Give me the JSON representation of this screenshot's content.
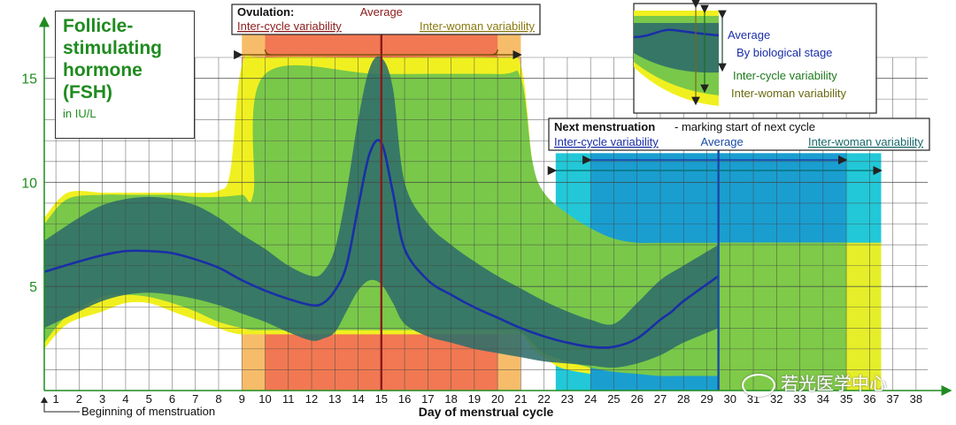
{
  "chart_data": {
    "type": "area",
    "title": "Follicle-stimulating hormone (FSH)",
    "unit": "in IU/L",
    "xlabel": "Day of menstrual cycle",
    "x_start_label": "Beginning of menstruation",
    "xlim": [
      0.5,
      38.5
    ],
    "ylim": [
      0,
      16
    ],
    "yticks": [
      5,
      10,
      15
    ],
    "xticks": [
      1,
      2,
      3,
      4,
      5,
      6,
      7,
      8,
      9,
      10,
      11,
      12,
      13,
      14,
      15,
      16,
      17,
      18,
      19,
      20,
      21,
      22,
      23,
      24,
      25,
      26,
      27,
      28,
      29,
      30,
      31,
      32,
      33,
      34,
      35,
      36,
      37,
      38
    ],
    "grid": true,
    "colors": {
      "average": "#1a2ea8",
      "biological_stage": "#2e6d6a",
      "inter_cycle": "#79c84a",
      "inter_woman": "#f0f020",
      "ovulation_inter_woman": "#f6b55a",
      "ovulation_inter_cycle": "#f07050",
      "menstruation_inter_woman": "#22c8d8",
      "menstruation_inter_cycle": "#1a9ed0",
      "ovulation_line": "#8b1a1a",
      "menstruation_line": "#1a4aa8"
    },
    "series": [
      {
        "name": "Average",
        "x": [
          0.5,
          2,
          3,
          4,
          5,
          6,
          7,
          8,
          9,
          10,
          11,
          12,
          12.5,
          13,
          13.5,
          14,
          14.5,
          15,
          15.5,
          16,
          17,
          18,
          19,
          20,
          21,
          22,
          23,
          24,
          25,
          26,
          27,
          27.5,
          28,
          29.5
        ],
        "y": [
          5.7,
          6.2,
          6.5,
          6.7,
          6.7,
          6.6,
          6.3,
          5.9,
          5.3,
          4.8,
          4.4,
          4.1,
          4.2,
          4.8,
          6.0,
          8.8,
          11.4,
          11.9,
          9.5,
          6.8,
          5.3,
          4.6,
          4.0,
          3.5,
          3.0,
          2.6,
          2.3,
          2.1,
          2.1,
          2.5,
          3.4,
          3.8,
          4.3,
          5.5
        ]
      },
      {
        "name": "By biological stage",
        "x": [
          0.5,
          2,
          3,
          4,
          5,
          6,
          7,
          8,
          9,
          10,
          11,
          12,
          12.5,
          13,
          13.5,
          14,
          14.5,
          15,
          15.5,
          16,
          17,
          18,
          19,
          20,
          21,
          22,
          23,
          24,
          25,
          26,
          27,
          28,
          29.5
        ],
        "upper": [
          7.2,
          8.3,
          8.9,
          9.2,
          9.3,
          9.2,
          8.9,
          8.3,
          7.5,
          6.8,
          6.0,
          5.5,
          5.7,
          6.8,
          9.5,
          13.0,
          15.5,
          16.0,
          14.5,
          10.0,
          8.0,
          7.0,
          6.2,
          5.5,
          4.9,
          4.3,
          3.8,
          3.4,
          3.2,
          4.2,
          5.3,
          6.0,
          7.0
        ],
        "lower": [
          3.0,
          3.8,
          4.3,
          4.6,
          4.7,
          4.6,
          4.4,
          4.1,
          3.7,
          3.3,
          2.8,
          2.4,
          2.5,
          2.8,
          3.8,
          4.8,
          5.3,
          5.1,
          4.2,
          3.2,
          2.6,
          2.3,
          2.0,
          1.8,
          1.6,
          1.4,
          1.3,
          1.2,
          1.1,
          1.3,
          1.7,
          2.3,
          3.0
        ]
      },
      {
        "name": "Inter-cycle variability",
        "x": [
          0.5,
          1.5,
          3,
          4,
          5,
          6,
          7,
          8,
          9,
          9.5,
          10,
          15,
          20,
          21,
          21.5,
          22,
          23,
          24,
          25,
          26,
          27,
          28,
          29.5
        ],
        "upper": [
          8.0,
          9.2,
          9.4,
          9.4,
          9.4,
          9.4,
          9.3,
          9.3,
          9.4,
          9.5,
          15.2,
          15.2,
          15.2,
          15.0,
          11.0,
          9.5,
          8.5,
          7.8,
          7.3,
          7.1,
          7.1,
          7.1,
          7.1
        ],
        "lower": [
          2.3,
          3.6,
          4.5,
          4.6,
          4.5,
          4.2,
          3.8,
          3.3,
          3.0,
          2.9,
          2.9,
          2.9,
          2.9,
          2.8,
          2.3,
          1.8,
          1.4,
          1.1,
          0.9,
          0.8,
          0.7,
          0.7,
          0.7
        ]
      },
      {
        "name": "Inter-woman variability",
        "x": [
          0.5,
          1.5,
          3,
          4,
          5,
          6,
          7,
          8,
          8.5,
          9,
          10,
          15,
          20,
          21,
          21.5,
          22,
          22.5,
          23,
          24
        ],
        "upper": [
          8.3,
          9.5,
          9.5,
          9.5,
          9.5,
          9.5,
          9.5,
          9.6,
          10.5,
          15.6,
          16.0,
          16.0,
          16.0,
          15.6,
          11.0,
          9.3,
          8.5,
          7.5,
          7.0
        ],
        "lower": [
          2.0,
          3.2,
          3.8,
          4.2,
          4.2,
          3.8,
          3.4,
          3.0,
          2.8,
          2.7,
          2.7,
          2.7,
          2.7,
          2.7,
          2.0,
          1.6,
          1.2,
          1.0,
          0.8
        ]
      }
    ],
    "ovulation": {
      "label": "Ovulation:",
      "average_label": "Average",
      "inter_cycle_label": "Inter-cycle variability",
      "inter_woman_label": "Inter-woman variability",
      "average_day": 15,
      "inter_cycle_range": [
        10,
        20
      ],
      "inter_woman_range": [
        9,
        21
      ]
    },
    "next_menstruation": {
      "label_bold": "Next menstruation",
      "label_rest": " - marking start of next cycle",
      "inter_cycle_label": "Inter-cycle variability",
      "average_label": "Average",
      "inter_woman_label": "Inter-woman variability",
      "average_day": 29.5,
      "inter_cycle_range": [
        24,
        35
      ],
      "inter_woman_range": [
        22.5,
        36.5
      ]
    },
    "legend": {
      "position": "top-right",
      "entries": [
        "Average",
        "By biological stage",
        "Inter-cycle variability",
        "Inter-woman variability"
      ]
    }
  },
  "watermark": "若光医学中心"
}
